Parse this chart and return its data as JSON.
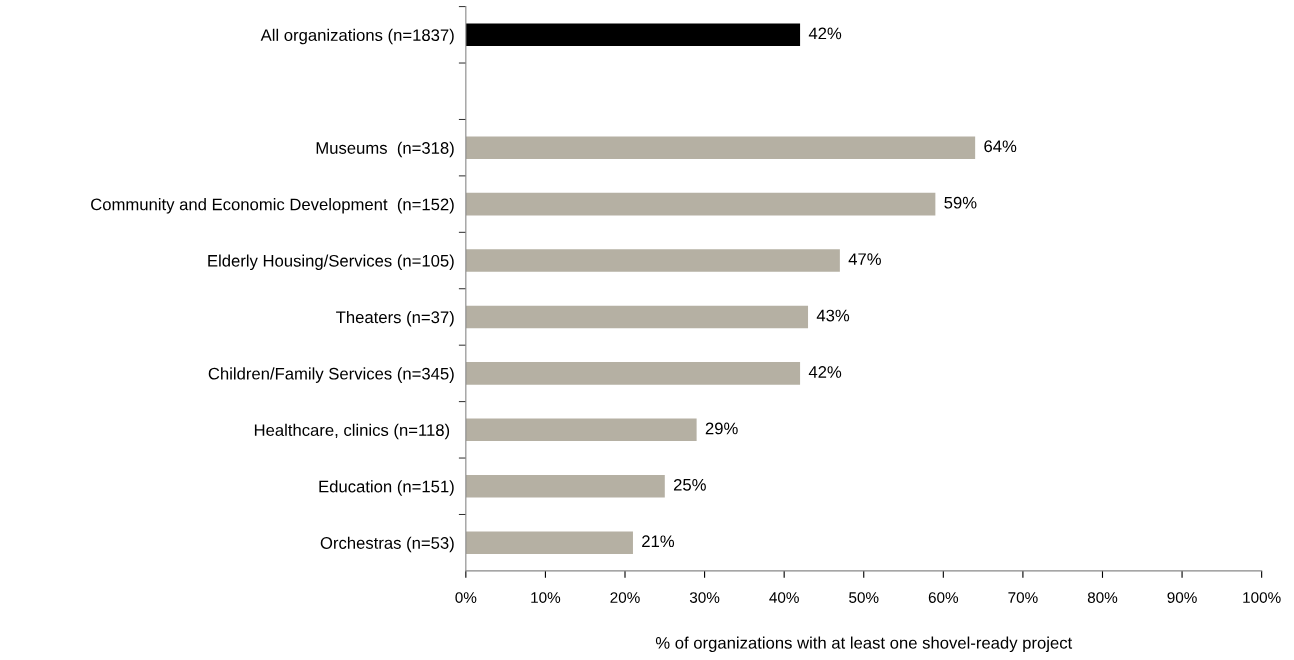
{
  "chart_data": {
    "type": "bar",
    "orientation": "horizontal",
    "categories": [
      "All organizations (n=1837)",
      null,
      "Museums  (n=318)",
      "Community and Economic Development  (n=152)",
      "Elderly Housing/Services (n=105)",
      "Theaters (n=37)",
      "Children/Family Services (n=345)",
      "Healthcare, clinics (n=118) ",
      "Education (n=151)",
      "Orchestras (n=53)"
    ],
    "values": [
      42,
      null,
      64,
      59,
      47,
      43,
      42,
      29,
      25,
      21
    ],
    "value_labels": [
      "42%",
      null,
      "64%",
      "59%",
      "47%",
      "43%",
      "42%",
      "29%",
      "25%",
      "21%"
    ],
    "colors": [
      "#000000",
      null,
      "#b5b0a3",
      "#b5b0a3",
      "#b5b0a3",
      "#b5b0a3",
      "#b5b0a3",
      "#b5b0a3",
      "#b5b0a3",
      "#b5b0a3"
    ],
    "xlabel": "% of organizations with at least one shovel-ready project",
    "xlim": [
      0,
      100
    ],
    "xticks": [
      {
        "value": 0,
        "label": "0%"
      },
      {
        "value": 10,
        "label": "10%"
      },
      {
        "value": 20,
        "label": "20%"
      },
      {
        "value": 30,
        "label": "30%"
      },
      {
        "value": 40,
        "label": "40%"
      },
      {
        "value": 50,
        "label": "50%"
      },
      {
        "value": 60,
        "label": "60%"
      },
      {
        "value": 70,
        "label": "70%"
      },
      {
        "value": 80,
        "label": "80%"
      },
      {
        "value": 90,
        "label": "90%"
      },
      {
        "value": 100,
        "label": "100%"
      }
    ],
    "grid": false,
    "legend": false
  }
}
